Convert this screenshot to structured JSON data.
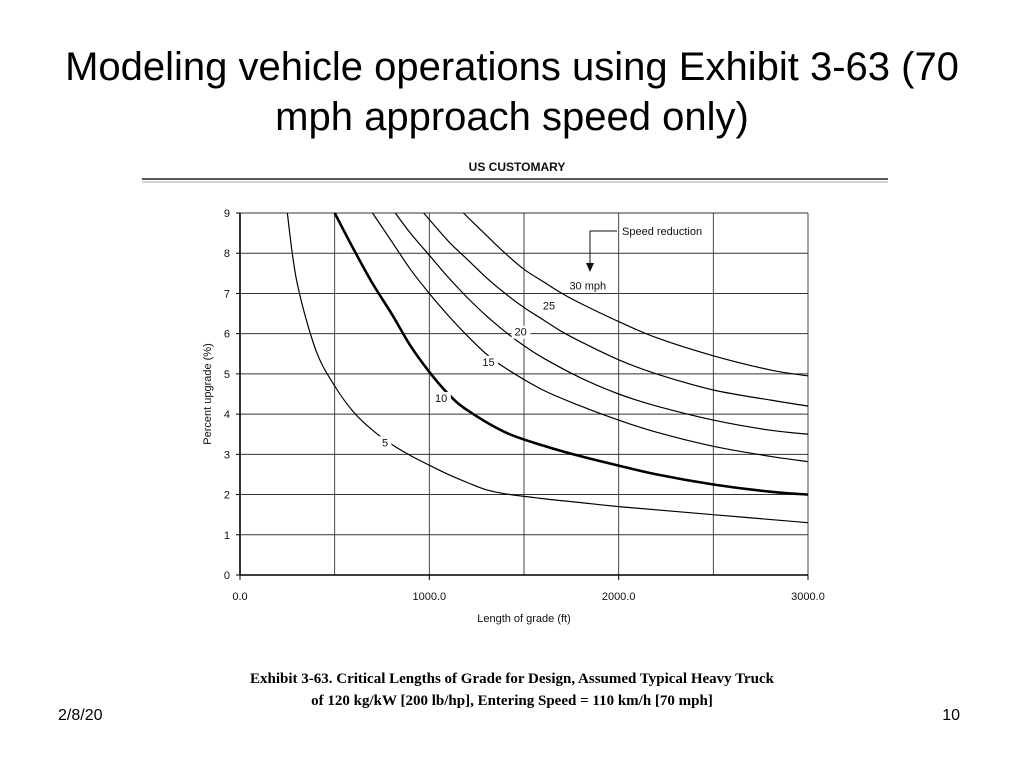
{
  "slide": {
    "title": "Modeling vehicle operations using Exhibit 3-63 (70 mph approach speed only)",
    "date_visible": "2/8/20",
    "page_number": "10"
  },
  "figure": {
    "heading": "US CUSTOMARY",
    "caption_line1": "Exhibit 3-63.  Critical Lengths of Grade for Design, Assumed Typical Heavy Truck",
    "caption_line2": "of 120 kg/kW [200 lb/hp], Entering Speed = 110 km/h [70 mph]",
    "annotation": "Speed reduction"
  },
  "chart_data": {
    "type": "line",
    "xlabel": "Length of grade (ft)",
    "ylabel": "Percent upgrade (%)",
    "xlim": [
      0,
      3000
    ],
    "ylim": [
      0,
      9
    ],
    "x_ticks": [
      {
        "value": 0,
        "label": "0.0"
      },
      {
        "value": 1000,
        "label": "1000.0"
      },
      {
        "value": 2000,
        "label": "2000.0"
      },
      {
        "value": 3000,
        "label": "3000.0"
      }
    ],
    "y_ticks": [
      0,
      1,
      2,
      3,
      4,
      5,
      6,
      7,
      8,
      9
    ],
    "x_grid": [
      0,
      500,
      1000,
      1500,
      2000,
      2500,
      3000
    ],
    "y_grid": [
      1,
      2,
      3,
      4,
      5,
      6,
      7,
      8,
      9
    ],
    "grid": true,
    "series": [
      {
        "name": "5",
        "label": "5",
        "label_x": 750,
        "label_y": 3.2,
        "bold": false,
        "x": [
          250,
          300,
          400,
          500,
          600,
          700,
          800,
          900,
          1000,
          1100,
          1200,
          1300,
          1400,
          1600,
          1800,
          2000,
          2500,
          3000
        ],
        "y": [
          9,
          7.3,
          5.6,
          4.7,
          4.05,
          3.6,
          3.25,
          2.97,
          2.73,
          2.5,
          2.3,
          2.12,
          2.02,
          1.9,
          1.8,
          1.7,
          1.5,
          1.3
        ]
      },
      {
        "name": "10",
        "label": "10",
        "label_x": 1030,
        "label_y": 4.3,
        "bold": true,
        "x": [
          500,
          600,
          700,
          800,
          900,
          1000,
          1100,
          1200,
          1400,
          1600,
          1800,
          2000,
          2200,
          2500,
          2800,
          3000
        ],
        "y": [
          9,
          8.1,
          7.25,
          6.5,
          5.7,
          5.05,
          4.5,
          4.1,
          3.55,
          3.22,
          2.95,
          2.72,
          2.5,
          2.25,
          2.07,
          2.0
        ]
      },
      {
        "name": "15",
        "label": "15",
        "label_x": 1280,
        "label_y": 5.2,
        "bold": false,
        "x": [
          700,
          800,
          900,
          1000,
          1100,
          1200,
          1300,
          1400,
          1600,
          1800,
          2000,
          2200,
          2500,
          2800,
          3000
        ],
        "y": [
          9,
          8.3,
          7.6,
          7.0,
          6.45,
          5.95,
          5.5,
          5.15,
          4.6,
          4.2,
          3.85,
          3.55,
          3.2,
          2.95,
          2.82
        ]
      },
      {
        "name": "20",
        "label": "20",
        "label_x": 1450,
        "label_y": 5.95,
        "bold": false,
        "x": [
          820,
          900,
          1000,
          1100,
          1200,
          1300,
          1400,
          1500,
          1600,
          1800,
          2000,
          2200,
          2500,
          2800,
          3000
        ],
        "y": [
          9,
          8.5,
          7.95,
          7.4,
          6.9,
          6.45,
          6.05,
          5.7,
          5.4,
          4.9,
          4.5,
          4.2,
          3.85,
          3.6,
          3.5
        ]
      },
      {
        "name": "25",
        "label": "25",
        "label_x": 1600,
        "label_y": 6.6,
        "bold": false,
        "x": [
          970,
          1100,
          1200,
          1300,
          1400,
          1500,
          1600,
          1700,
          1800,
          2000,
          2200,
          2500,
          2800,
          3000
        ],
        "y": [
          9,
          8.3,
          7.85,
          7.4,
          7.0,
          6.65,
          6.35,
          6.05,
          5.8,
          5.35,
          5.0,
          4.6,
          4.35,
          4.2
        ]
      },
      {
        "name": "30",
        "label": "30 mph",
        "label_x": 1740,
        "label_y": 7.1,
        "bold": false,
        "x": [
          1180,
          1300,
          1400,
          1500,
          1600,
          1700,
          1800,
          2000,
          2200,
          2500,
          2800,
          3000
        ],
        "y": [
          9,
          8.45,
          8.0,
          7.6,
          7.3,
          7.0,
          6.75,
          6.3,
          5.9,
          5.45,
          5.1,
          4.95
        ]
      }
    ]
  }
}
